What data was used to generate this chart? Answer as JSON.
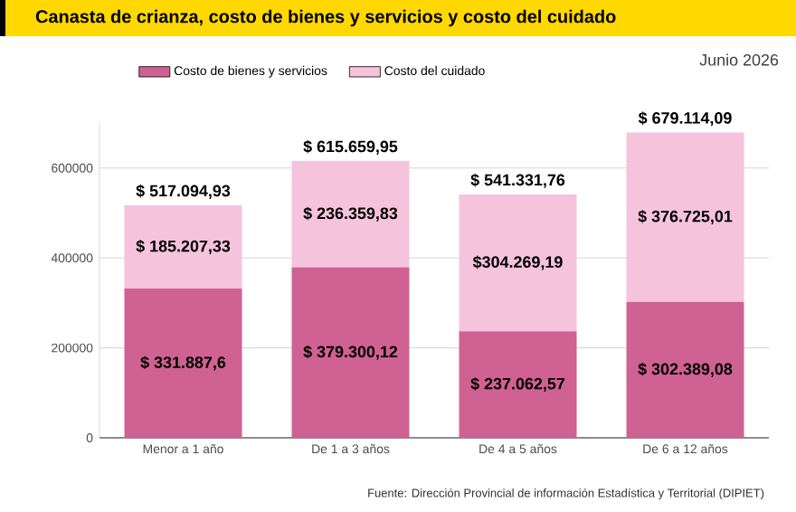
{
  "chart_data": {
    "type": "bar",
    "title": "Canasta de crianza, costo de bienes y servicios y costo del cuidado",
    "subtitle": "Junio 2026",
    "annotations": [
      "Fuente: Dirección Provincial de información Estadística y Territorial (DIPIET)"
    ],
    "categories": [
      "Menor a 1 año",
      "De 1 a 3 años",
      "De 4 a 5 años",
      "De 6 a 12 años"
    ],
    "stacked": true,
    "series": [
      {
        "name": "Costo de bienes y servicios",
        "color": "#cf6193",
        "values": [
          331887.6,
          379300.12,
          237062.57,
          302389.08
        ],
        "value_labels": [
          "$ 331.887,6",
          "$ 379.300,12",
          "$ 237.062,57",
          "$ 302.389,08"
        ]
      },
      {
        "name": "Costo del cuidado",
        "color": "#f5c3dc",
        "values": [
          185207.33,
          236359.83,
          304269.19,
          376725.01
        ],
        "value_labels": [
          "$ 185.207,33",
          "$ 236.359,83",
          "$304.269,19",
          "$ 376.725,01"
        ]
      }
    ],
    "totals": [
      "$ 517.094,93",
      "$ 615.659,95",
      "$ 541.331,76",
      "$ 679.114,09"
    ],
    "ylim": [
      0,
      700000
    ],
    "yticks": [
      0,
      200000,
      400000,
      600000
    ],
    "grid": "y",
    "legend": "top"
  }
}
